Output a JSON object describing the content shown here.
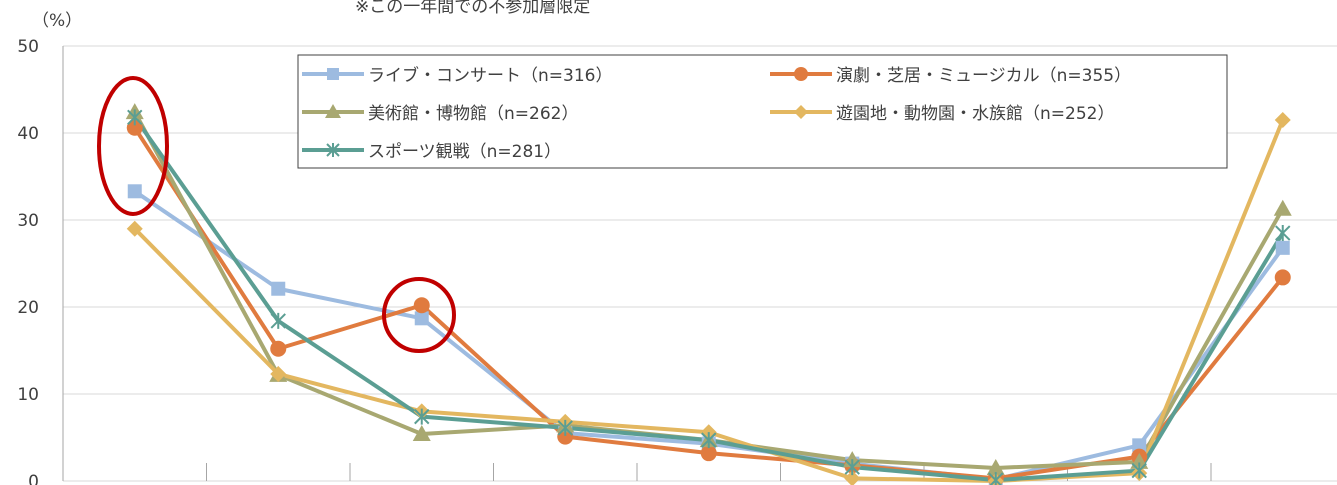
{
  "chart_data": {
    "type": "line",
    "title": "※この一年間での不参加層限定",
    "y_label": "（%）",
    "categories": [
      null,
      null,
      null,
      null,
      null,
      null,
      null,
      null,
      null
    ],
    "ylim": [
      0,
      50
    ],
    "yticks": [
      0,
      10,
      20,
      30,
      40,
      50
    ],
    "grid": true,
    "series": [
      {
        "name": "ライブ・コンサート（n=316）",
        "color": "#9dbbe0",
        "marker": "square",
        "values": [
          33.3,
          22.1,
          18.7,
          5.5,
          4.3,
          2.0,
          0.2,
          4.1,
          26.8
        ]
      },
      {
        "name": "演劇・芝居・ミュージカル（n=355）",
        "color": "#e07b3f",
        "marker": "circle",
        "values": [
          40.6,
          15.2,
          20.2,
          5.1,
          3.2,
          1.8,
          0.3,
          2.8,
          23.4
        ]
      },
      {
        "name": "美術館・博物館（n=262）",
        "color": "#a8a871",
        "marker": "triangle",
        "values": [
          42.4,
          12.2,
          5.4,
          6.4,
          4.7,
          2.4,
          1.5,
          2.2,
          31.3
        ]
      },
      {
        "name": "遊園地・動物園・水族館（n=252）",
        "color": "#e3b760",
        "marker": "diamond",
        "values": [
          29.0,
          12.3,
          8.0,
          6.8,
          5.6,
          0.3,
          0.0,
          0.9,
          41.5
        ]
      },
      {
        "name": "スポーツ観戦（n=281）",
        "color": "#5b9e93",
        "marker": "asterisk",
        "values": [
          41.8,
          18.4,
          7.4,
          6.1,
          4.7,
          1.6,
          0.1,
          1.2,
          28.5
        ]
      }
    ]
  }
}
